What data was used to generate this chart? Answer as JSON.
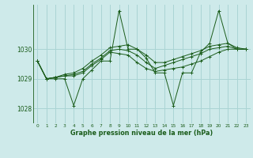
{
  "title": "Graphe pression niveau de la mer (hPa)",
  "background_color": "#ceeaea",
  "grid_color": "#aad4d4",
  "line_color": "#1a5c1a",
  "xlim": [
    -0.5,
    23.5
  ],
  "ylim": [
    1027.5,
    1031.5
  ],
  "yticks": [
    1028,
    1029,
    1030
  ],
  "xtick_labels": [
    "0",
    "1",
    "2",
    "3",
    "4",
    "5",
    "6",
    "7",
    "8",
    "9",
    "10",
    "11",
    "12",
    "13",
    "14",
    "15",
    "16",
    "17",
    "18",
    "19",
    "20",
    "21",
    "22",
    "23"
  ],
  "series": [
    [
      1029.6,
      1029.0,
      1029.0,
      1029.0,
      1028.1,
      1029.0,
      1029.3,
      1029.6,
      1029.6,
      1031.3,
      1030.0,
      1030.0,
      1029.7,
      1029.2,
      1029.2,
      1028.1,
      1029.2,
      1029.2,
      1029.9,
      1030.2,
      1031.3,
      1030.2,
      1030.0,
      1030.0
    ],
    [
      1029.6,
      1029.0,
      1029.05,
      1029.1,
      1029.1,
      1029.2,
      1029.45,
      1029.65,
      1029.9,
      1029.85,
      1029.8,
      1029.55,
      1029.35,
      1029.25,
      1029.3,
      1029.35,
      1029.4,
      1029.5,
      1029.6,
      1029.75,
      1029.9,
      1030.0,
      1030.0,
      1030.0
    ],
    [
      1029.6,
      1029.0,
      1029.05,
      1029.1,
      1029.15,
      1029.25,
      1029.5,
      1029.7,
      1029.95,
      1030.0,
      1029.95,
      1029.8,
      1029.55,
      1029.35,
      1029.45,
      1029.55,
      1029.65,
      1029.75,
      1029.85,
      1030.0,
      1030.05,
      1030.1,
      1030.0,
      1030.0
    ],
    [
      1029.6,
      1029.0,
      1029.05,
      1029.15,
      1029.2,
      1029.35,
      1029.6,
      1029.8,
      1030.05,
      1030.1,
      1030.15,
      1030.0,
      1029.8,
      1029.55,
      1029.55,
      1029.65,
      1029.75,
      1029.85,
      1029.95,
      1030.1,
      1030.15,
      1030.2,
      1030.05,
      1030.0
    ]
  ]
}
